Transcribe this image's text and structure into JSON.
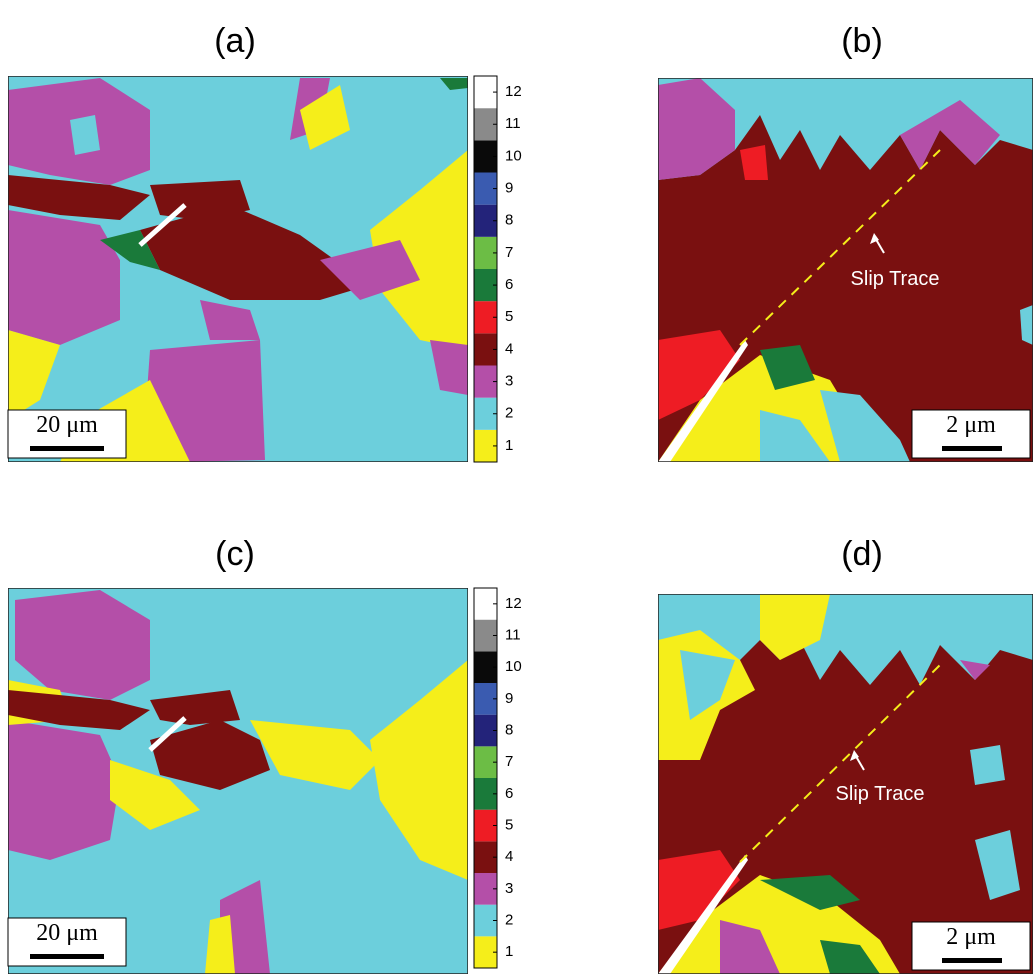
{
  "panels": [
    {
      "label": "(a)",
      "scale_bar": "20 μm"
    },
    {
      "label": "(b)",
      "scale_bar": "2 μm",
      "annotation": "Slip Trace"
    },
    {
      "label": "(c)",
      "scale_bar": "20 μm"
    },
    {
      "label": "(d)",
      "scale_bar": "2 μm",
      "annotation": "Slip Trace"
    }
  ],
  "colorbar": {
    "ticks": [
      1,
      2,
      3,
      4,
      5,
      6,
      7,
      8,
      9,
      10,
      11,
      12
    ],
    "colors": [
      "#f5ee1a",
      "#6ccfdc",
      "#b44fa8",
      "#7a1010",
      "#ee1c24",
      "#1a7a3a",
      "#6cbd45",
      "#23237a",
      "#3a5bb0",
      "#0a0a0a",
      "#8a8a8a",
      "#ffffff"
    ]
  }
}
